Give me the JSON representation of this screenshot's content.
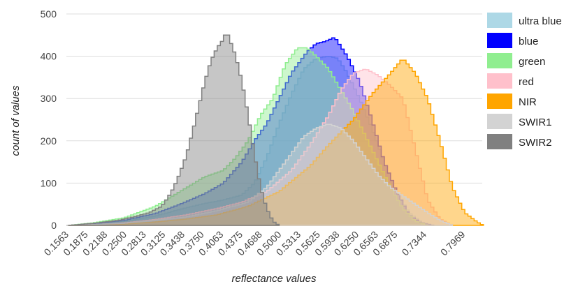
{
  "chart_data": {
    "type": "area",
    "xlabel": "reflectance values",
    "ylabel": "count of values",
    "ylim": [
      0,
      500
    ],
    "yticks": [
      0,
      100,
      200,
      300,
      400,
      500
    ],
    "xlim": [
      0.1563,
      0.8281
    ],
    "xticks": [
      "0.1563",
      "0.1875",
      "0.2188",
      "0.2500",
      "0.2813",
      "0.3125",
      "0.3438",
      "0.3750",
      "0.4063",
      "0.4375",
      "0.4688",
      "0.5000",
      "0.5313",
      "0.5625",
      "0.5938",
      "0.6250",
      "0.6563",
      "0.6875",
      "0.7344",
      "0.7969"
    ],
    "grid": true,
    "legend_position": "right",
    "series": [
      {
        "name": "ultra blue",
        "color": "#add8e6",
        "points": [
          [
            0.16,
            0
          ],
          [
            0.2,
            3
          ],
          [
            0.25,
            10
          ],
          [
            0.3,
            22
          ],
          [
            0.34,
            38
          ],
          [
            0.38,
            52
          ],
          [
            0.41,
            60
          ],
          [
            0.44,
            72
          ],
          [
            0.46,
            100
          ],
          [
            0.48,
            160
          ],
          [
            0.5,
            240
          ],
          [
            0.52,
            310
          ],
          [
            0.54,
            370
          ],
          [
            0.56,
            395
          ],
          [
            0.58,
            400
          ],
          [
            0.595,
            395
          ],
          [
            0.61,
            360
          ],
          [
            0.63,
            300
          ],
          [
            0.65,
            230
          ],
          [
            0.67,
            150
          ],
          [
            0.69,
            80
          ],
          [
            0.71,
            30
          ],
          [
            0.73,
            8
          ],
          [
            0.75,
            0
          ]
        ]
      },
      {
        "name": "blue",
        "color": "#0000ff",
        "points": [
          [
            0.16,
            0
          ],
          [
            0.2,
            4
          ],
          [
            0.25,
            12
          ],
          [
            0.3,
            28
          ],
          [
            0.34,
            50
          ],
          [
            0.38,
            75
          ],
          [
            0.41,
            100
          ],
          [
            0.44,
            150
          ],
          [
            0.46,
            200
          ],
          [
            0.48,
            240
          ],
          [
            0.5,
            300
          ],
          [
            0.52,
            360
          ],
          [
            0.545,
            410
          ],
          [
            0.56,
            430
          ],
          [
            0.575,
            435
          ],
          [
            0.59,
            445
          ],
          [
            0.61,
            400
          ],
          [
            0.63,
            340
          ],
          [
            0.65,
            250
          ],
          [
            0.67,
            150
          ],
          [
            0.69,
            80
          ],
          [
            0.71,
            25
          ],
          [
            0.73,
            5
          ],
          [
            0.75,
            0
          ]
        ]
      },
      {
        "name": "green",
        "color": "#90ee90",
        "points": [
          [
            0.16,
            0
          ],
          [
            0.2,
            6
          ],
          [
            0.25,
            18
          ],
          [
            0.3,
            45
          ],
          [
            0.34,
            80
          ],
          [
            0.38,
            115
          ],
          [
            0.41,
            130
          ],
          [
            0.43,
            160
          ],
          [
            0.45,
            200
          ],
          [
            0.47,
            260
          ],
          [
            0.49,
            300
          ],
          [
            0.51,
            380
          ],
          [
            0.53,
            420
          ],
          [
            0.545,
            420
          ],
          [
            0.56,
            400
          ],
          [
            0.58,
            370
          ],
          [
            0.6,
            320
          ],
          [
            0.62,
            270
          ],
          [
            0.64,
            210
          ],
          [
            0.66,
            150
          ],
          [
            0.68,
            90
          ],
          [
            0.7,
            40
          ],
          [
            0.72,
            10
          ],
          [
            0.74,
            0
          ]
        ]
      },
      {
        "name": "red",
        "color": "#ffc0cb",
        "points": [
          [
            0.16,
            0
          ],
          [
            0.2,
            2
          ],
          [
            0.25,
            6
          ],
          [
            0.3,
            14
          ],
          [
            0.35,
            25
          ],
          [
            0.4,
            40
          ],
          [
            0.44,
            55
          ],
          [
            0.48,
            80
          ],
          [
            0.52,
            130
          ],
          [
            0.55,
            190
          ],
          [
            0.58,
            260
          ],
          [
            0.6,
            320
          ],
          [
            0.62,
            360
          ],
          [
            0.64,
            370
          ],
          [
            0.66,
            355
          ],
          [
            0.68,
            330
          ],
          [
            0.7,
            300
          ],
          [
            0.72,
            180
          ],
          [
            0.74,
            60
          ],
          [
            0.76,
            15
          ],
          [
            0.78,
            0
          ]
        ]
      },
      {
        "name": "NIR",
        "color": "#ffa500",
        "points": [
          [
            0.16,
            0
          ],
          [
            0.25,
            3
          ],
          [
            0.3,
            8
          ],
          [
            0.35,
            15
          ],
          [
            0.4,
            25
          ],
          [
            0.45,
            45
          ],
          [
            0.5,
            80
          ],
          [
            0.55,
            140
          ],
          [
            0.58,
            190
          ],
          [
            0.62,
            250
          ],
          [
            0.65,
            310
          ],
          [
            0.68,
            360
          ],
          [
            0.7,
            395
          ],
          [
            0.72,
            360
          ],
          [
            0.74,
            300
          ],
          [
            0.76,
            200
          ],
          [
            0.78,
            90
          ],
          [
            0.8,
            30
          ],
          [
            0.82,
            8
          ],
          [
            0.83,
            0
          ]
        ]
      },
      {
        "name": "SWIR1",
        "color": "#d3d3d3",
        "points": [
          [
            0.16,
            0
          ],
          [
            0.2,
            2
          ],
          [
            0.25,
            5
          ],
          [
            0.3,
            12
          ],
          [
            0.35,
            20
          ],
          [
            0.4,
            35
          ],
          [
            0.45,
            55
          ],
          [
            0.48,
            90
          ],
          [
            0.5,
            130
          ],
          [
            0.52,
            170
          ],
          [
            0.54,
            210
          ],
          [
            0.56,
            230
          ],
          [
            0.58,
            240
          ],
          [
            0.6,
            230
          ],
          [
            0.62,
            200
          ],
          [
            0.64,
            160
          ],
          [
            0.66,
            120
          ],
          [
            0.68,
            90
          ],
          [
            0.7,
            70
          ],
          [
            0.72,
            50
          ],
          [
            0.74,
            30
          ],
          [
            0.76,
            12
          ],
          [
            0.78,
            0
          ]
        ]
      },
      {
        "name": "SWIR2",
        "color": "#808080",
        "points": [
          [
            0.16,
            0
          ],
          [
            0.2,
            5
          ],
          [
            0.24,
            12
          ],
          [
            0.27,
            22
          ],
          [
            0.29,
            30
          ],
          [
            0.31,
            45
          ],
          [
            0.32,
            65
          ],
          [
            0.33,
            90
          ],
          [
            0.34,
            125
          ],
          [
            0.35,
            165
          ],
          [
            0.36,
            220
          ],
          [
            0.37,
            280
          ],
          [
            0.38,
            340
          ],
          [
            0.39,
            390
          ],
          [
            0.4,
            420
          ],
          [
            0.41,
            440
          ],
          [
            0.415,
            460
          ],
          [
            0.42,
            440
          ],
          [
            0.43,
            400
          ],
          [
            0.44,
            340
          ],
          [
            0.45,
            260
          ],
          [
            0.46,
            170
          ],
          [
            0.47,
            90
          ],
          [
            0.48,
            40
          ],
          [
            0.49,
            10
          ],
          [
            0.5,
            0
          ]
        ]
      }
    ]
  }
}
